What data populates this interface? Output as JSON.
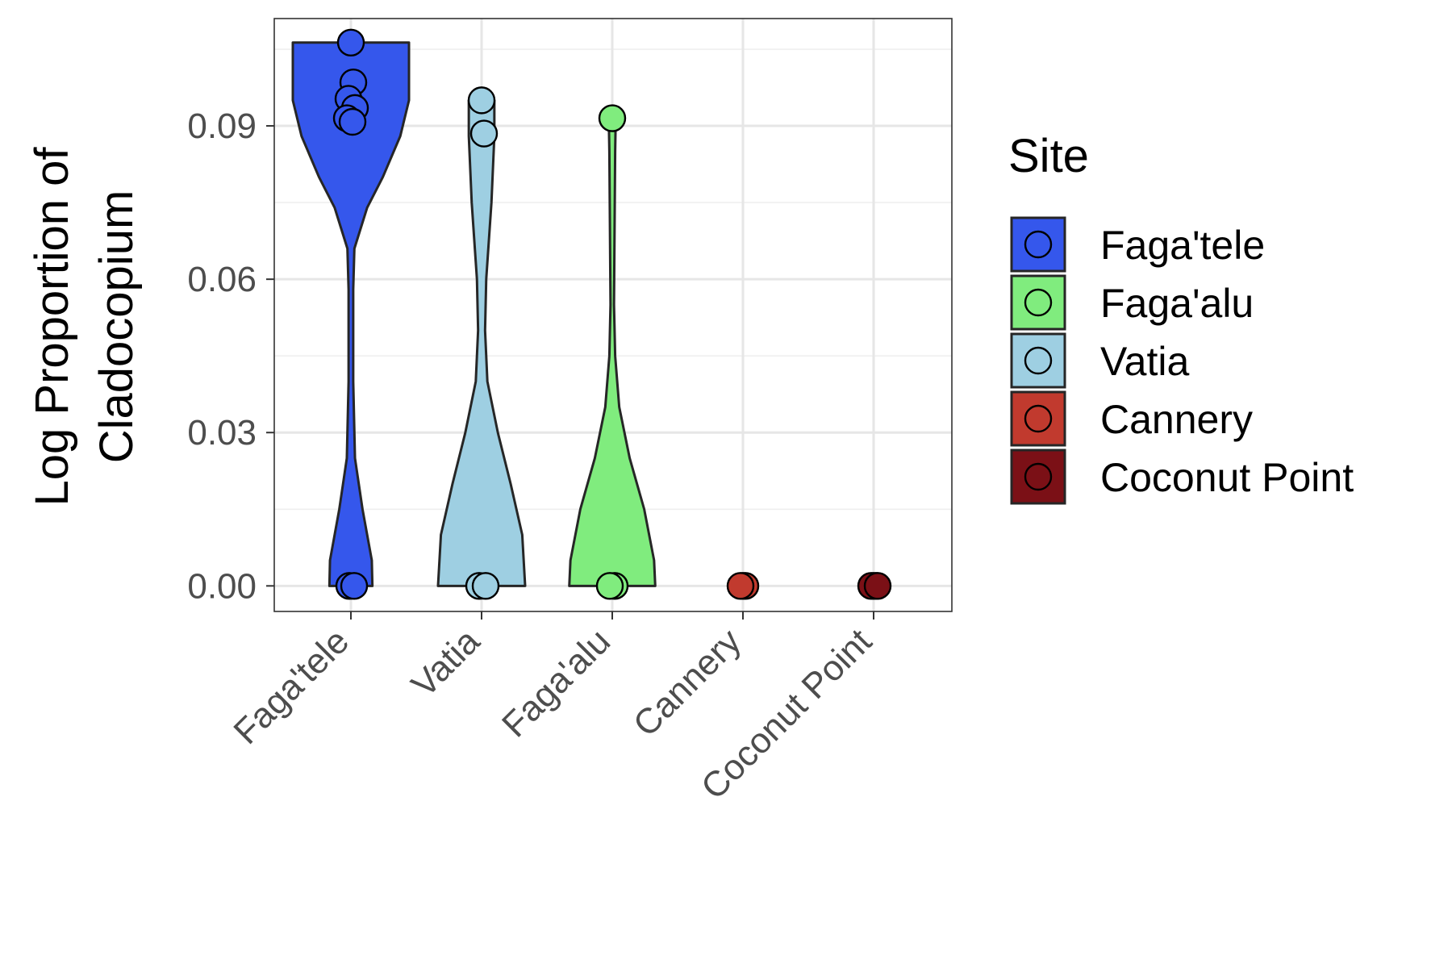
{
  "chart_data": {
    "type": "violin",
    "ylabel_line1": "Log Proportion of",
    "ylabel_line2": "Cladocopium",
    "xlabel": "",
    "ylim": [
      -0.005,
      0.111
    ],
    "y_ticks": [
      0.0,
      0.03,
      0.06,
      0.09
    ],
    "y_tick_labels": [
      "0.00",
      "0.03",
      "0.06",
      "0.09"
    ],
    "grid": true,
    "x_tick_rotation_deg": 45,
    "categories": [
      "Faga'tele",
      "Vatia",
      "Faga'alu",
      "Cannery",
      "Coconut Point"
    ],
    "series": [
      {
        "name": "Faga'tele",
        "color": "#3557EC",
        "points": [
          0.1063,
          0.0985,
          0.0953,
          0.0935,
          0.0915,
          0.0908,
          0.0,
          0.0
        ],
        "violin": [
          [
            0.1063,
            1.0
          ],
          [
            0.103,
            1.0
          ],
          [
            0.095,
            1.0
          ],
          [
            0.088,
            0.85
          ],
          [
            0.08,
            0.55
          ],
          [
            0.074,
            0.28
          ],
          [
            0.066,
            0.06
          ],
          [
            0.058,
            0.04
          ],
          [
            0.04,
            0.04
          ],
          [
            0.025,
            0.07
          ],
          [
            0.015,
            0.2
          ],
          [
            0.005,
            0.36
          ],
          [
            0.0,
            0.37
          ]
        ]
      },
      {
        "name": "Vatia",
        "color": "#9ECFE2",
        "points": [
          0.095,
          0.0885,
          0.0,
          0.0
        ],
        "violin": [
          [
            0.095,
            0.22
          ],
          [
            0.088,
            0.22
          ],
          [
            0.075,
            0.17
          ],
          [
            0.06,
            0.08
          ],
          [
            0.05,
            0.06
          ],
          [
            0.04,
            0.1
          ],
          [
            0.03,
            0.28
          ],
          [
            0.02,
            0.5
          ],
          [
            0.01,
            0.7
          ],
          [
            0.0,
            0.75
          ]
        ]
      },
      {
        "name": "Faga'alu",
        "color": "#80EC7E",
        "points": [
          0.0915,
          0.0,
          0.0
        ],
        "violin": [
          [
            0.0915,
            0.06
          ],
          [
            0.085,
            0.05
          ],
          [
            0.07,
            0.04
          ],
          [
            0.055,
            0.03
          ],
          [
            0.045,
            0.05
          ],
          [
            0.035,
            0.12
          ],
          [
            0.025,
            0.3
          ],
          [
            0.015,
            0.55
          ],
          [
            0.005,
            0.72
          ],
          [
            0.0,
            0.74
          ]
        ]
      },
      {
        "name": "Cannery",
        "color": "#C13A2E",
        "points": [
          0.0,
          0.0,
          0.0
        ],
        "violin": []
      },
      {
        "name": "Coconut Point",
        "color": "#7B1016",
        "points": [
          0.0,
          0.0,
          0.0,
          0.0
        ],
        "violin": []
      }
    ],
    "legend": {
      "title": "Site",
      "position": "right",
      "items": [
        "Faga'tele",
        "Faga'alu",
        "Vatia",
        "Cannery",
        "Coconut Point"
      ]
    }
  }
}
